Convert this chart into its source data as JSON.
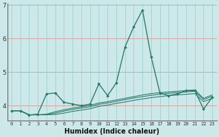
{
  "xlabel": "Humidex (Indice chaleur)",
  "bg_color": "#cce8e8",
  "grid_color_h": "#e8b0b0",
  "grid_color_v": "#9ecece",
  "line_color": "#2a7a6a",
  "x": [
    0,
    1,
    2,
    3,
    4,
    5,
    6,
    7,
    8,
    9,
    10,
    11,
    12,
    13,
    14,
    15,
    16,
    17,
    18,
    19,
    20,
    21,
    22,
    23
  ],
  "series1": [
    3.85,
    3.85,
    3.72,
    3.75,
    4.35,
    4.38,
    4.1,
    4.05,
    4.0,
    4.05,
    4.65,
    4.3,
    4.68,
    5.75,
    6.35,
    6.85,
    5.45,
    4.38,
    4.3,
    4.35,
    4.45,
    4.45,
    3.9,
    4.25
  ],
  "series2": [
    3.85,
    3.85,
    3.73,
    3.73,
    3.75,
    3.82,
    3.88,
    3.93,
    3.97,
    4.01,
    4.08,
    4.12,
    4.17,
    4.22,
    4.27,
    4.32,
    4.36,
    4.39,
    4.41,
    4.43,
    4.45,
    4.47,
    4.22,
    4.32
  ],
  "series3": [
    3.85,
    3.85,
    3.73,
    3.73,
    3.73,
    3.78,
    3.84,
    3.89,
    3.93,
    3.97,
    4.04,
    4.08,
    4.13,
    4.18,
    4.23,
    4.27,
    4.31,
    4.34,
    4.37,
    4.39,
    4.41,
    4.43,
    4.18,
    4.28
  ],
  "series4": [
    3.85,
    3.85,
    3.73,
    3.73,
    3.73,
    3.74,
    3.78,
    3.83,
    3.87,
    3.91,
    3.98,
    4.02,
    4.07,
    4.11,
    4.16,
    4.2,
    4.24,
    4.27,
    4.3,
    4.32,
    4.34,
    4.36,
    4.12,
    4.22
  ],
  "ylim": [
    3.55,
    7.05
  ],
  "yticks": [
    4,
    5,
    6,
    7
  ],
  "xlim": [
    -0.5,
    23.5
  ],
  "figsize": [
    3.2,
    2.0
  ],
  "dpi": 100
}
